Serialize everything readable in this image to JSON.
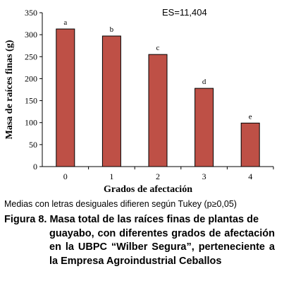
{
  "chart_data": {
    "type": "bar",
    "categories": [
      "0",
      "1",
      "2",
      "3",
      "4"
    ],
    "values": [
      313,
      297,
      255,
      178,
      99
    ],
    "bar_letters": [
      "a",
      "b",
      "c",
      "d",
      "e"
    ],
    "annotation": "ES=11,404",
    "xlabel": "Grados de afectación",
    "ylabel": "Masa de raíces finas (g)",
    "ylim": [
      0,
      350
    ],
    "yticks": [
      0,
      50,
      100,
      150,
      200,
      250,
      300,
      350
    ],
    "grid": false,
    "bar_color": "#be5046"
  },
  "footnote": "Medias con letras desiguales difieren según Tukey (p≥0,05)",
  "caption": {
    "label": "Figura 8.",
    "first_line": "Masa total de las raíces finas de plantas de",
    "rest": "guayabo, con diferentes grados de afectación en la UBPC “Wilber Segura”, perteneciente a la Empresa Agroindustrial Ceballos"
  }
}
